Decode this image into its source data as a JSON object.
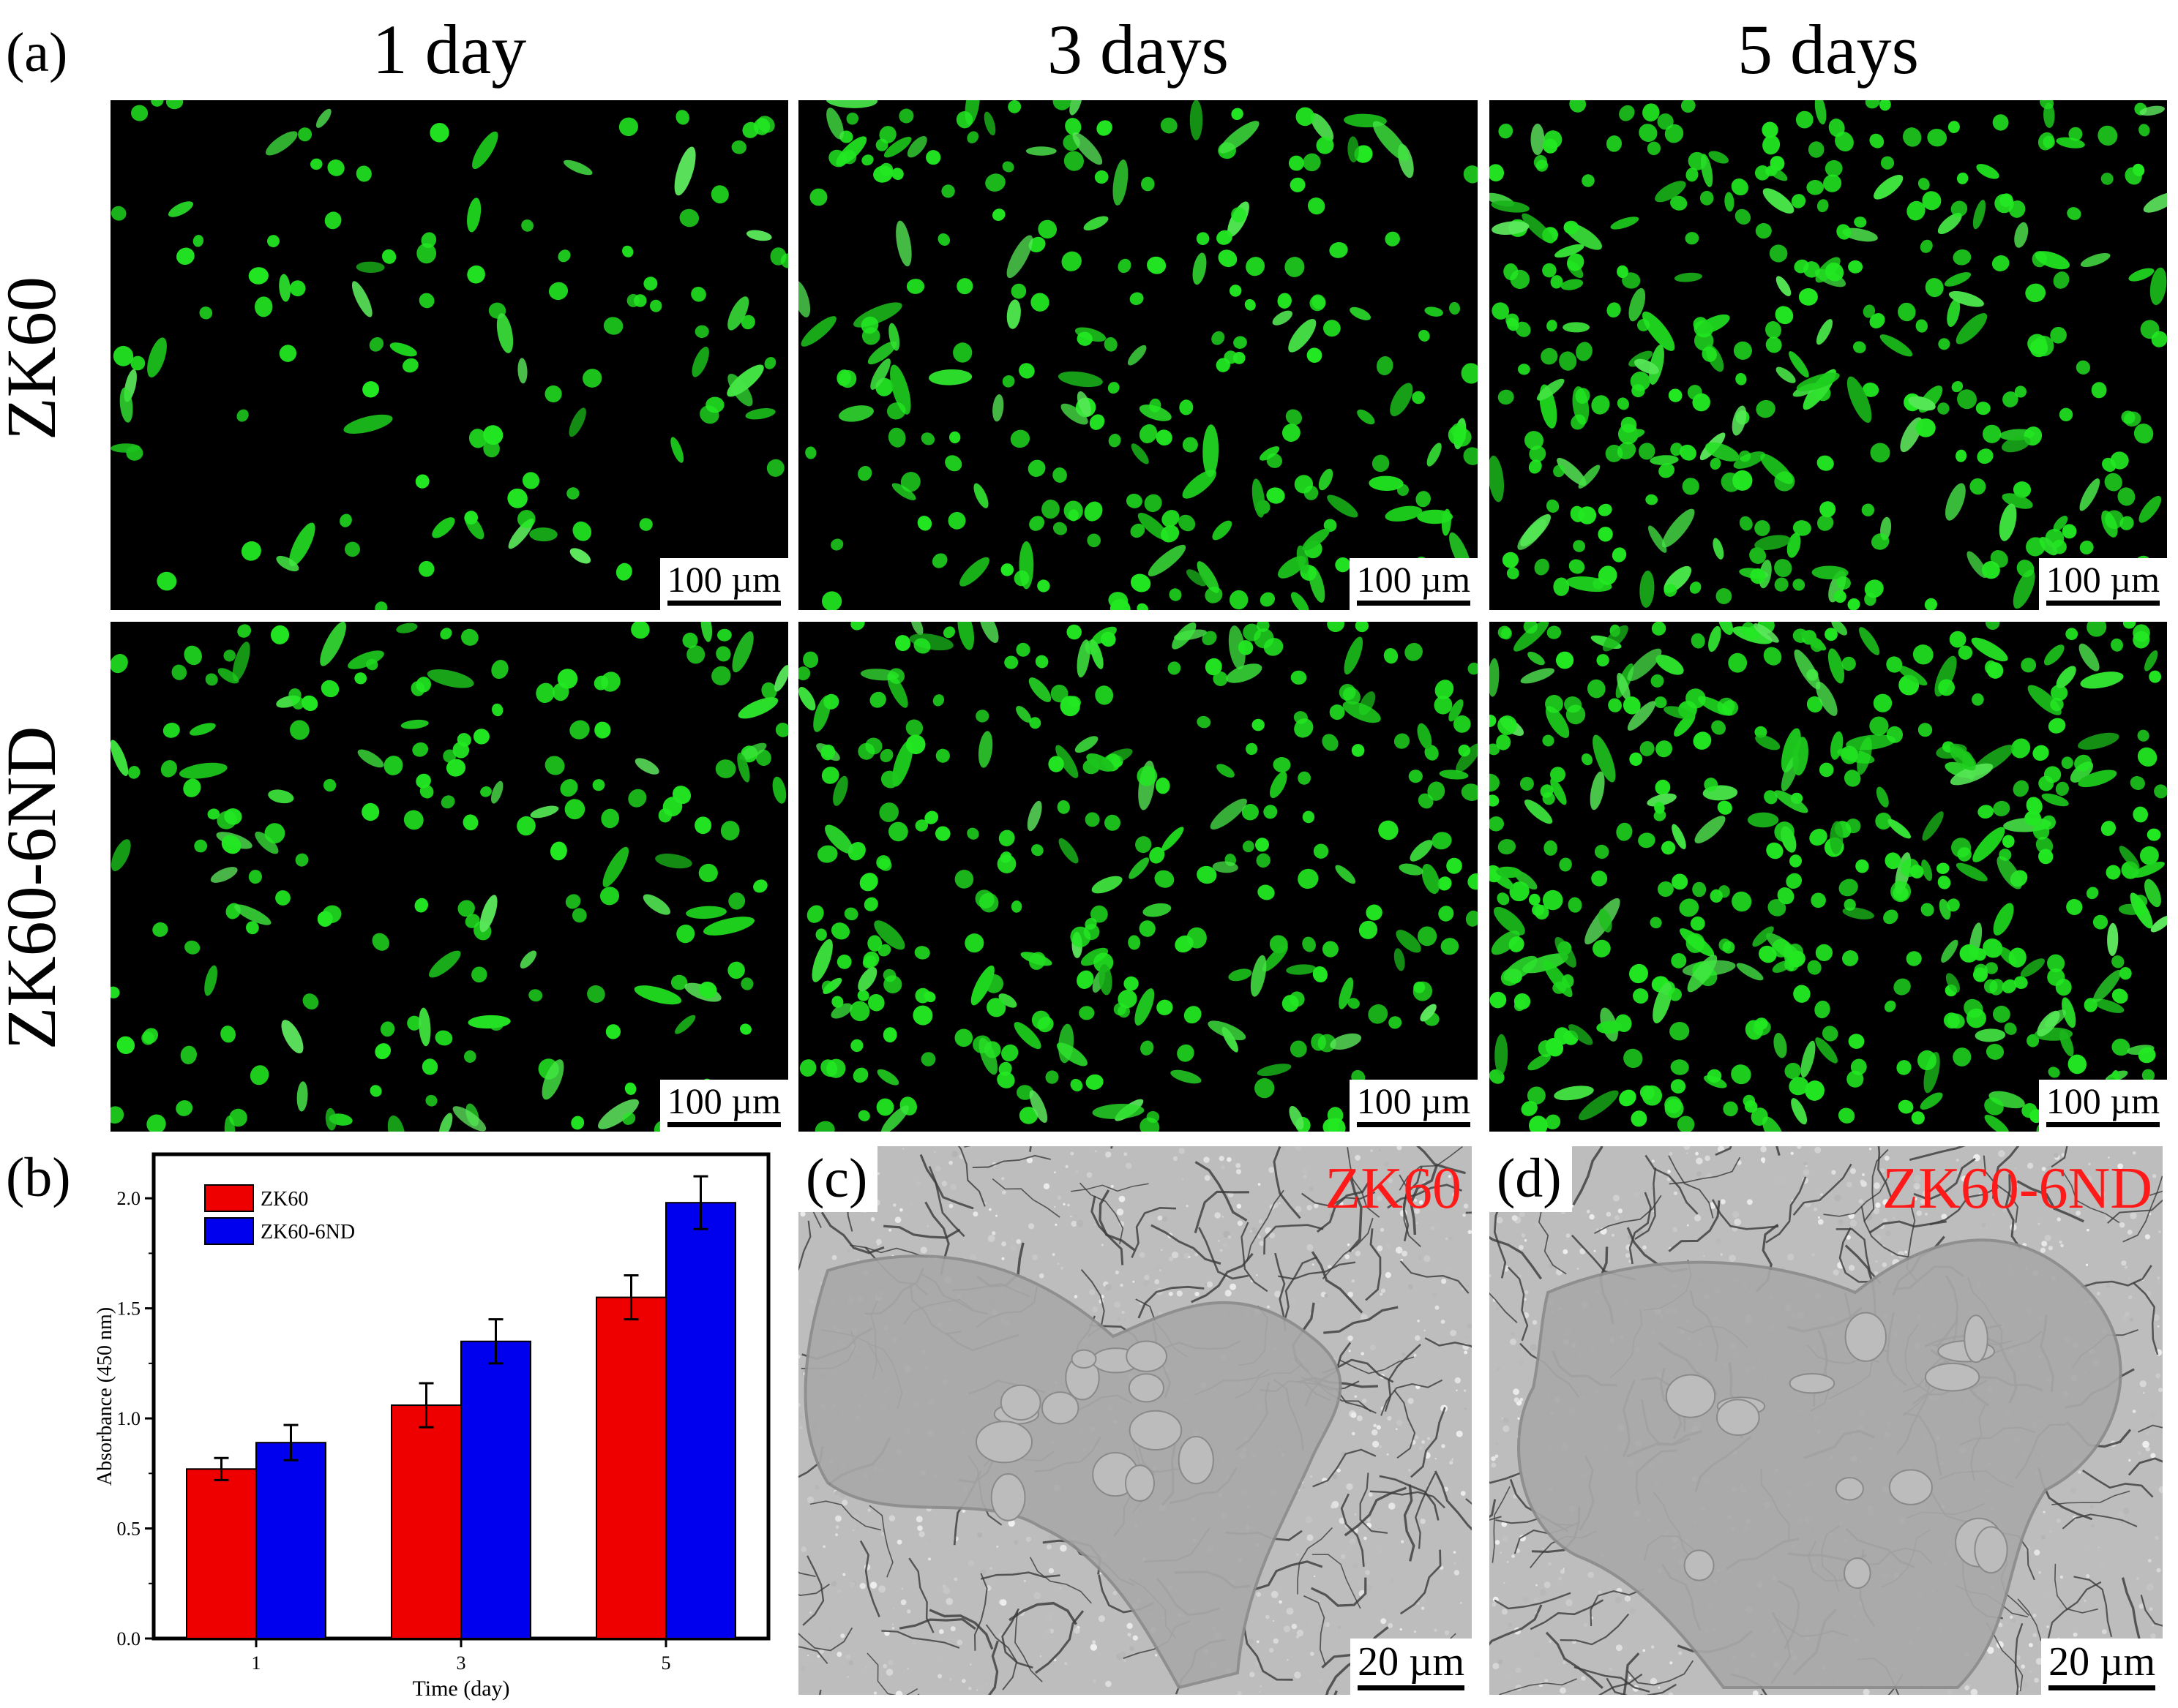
{
  "figure": {
    "panel_a_label": "(a)",
    "panel_b_label": "(b)",
    "panel_c_label": "(c)",
    "panel_d_label": "(d)",
    "column_titles": [
      "1 day",
      "3 days",
      "5 days"
    ],
    "row_titles": [
      "ZK60",
      "ZK60-6ND"
    ],
    "fluorescence_scale_bar": "100 µm",
    "sem_scale_bar": "20 µm",
    "sem_c_material": "ZK60",
    "sem_d_material": "ZK60-6ND",
    "fluorescence_cell_color": "#22e822",
    "sem_label_color": "#ff1a1a"
  },
  "chart_data": {
    "type": "bar",
    "categories": [
      "1",
      "3",
      "5"
    ],
    "series": [
      {
        "name": "ZK60",
        "color": "#ee0000",
        "values": [
          0.77,
          1.06,
          1.55
        ],
        "errors": [
          0.05,
          0.1,
          0.1
        ]
      },
      {
        "name": "ZK60-6ND",
        "color": "#0000ee",
        "values": [
          0.89,
          1.35,
          1.98
        ],
        "errors": [
          0.08,
          0.1,
          0.12
        ]
      }
    ],
    "xlabel": "Time (day)",
    "ylabel": "Absorbance (450 nm)",
    "ylim": [
      0.0,
      2.2
    ],
    "yticks": [
      "0.0",
      "0.5",
      "1.0",
      "1.5",
      "2.0"
    ],
    "grid": false,
    "legend_position": "top-left"
  }
}
